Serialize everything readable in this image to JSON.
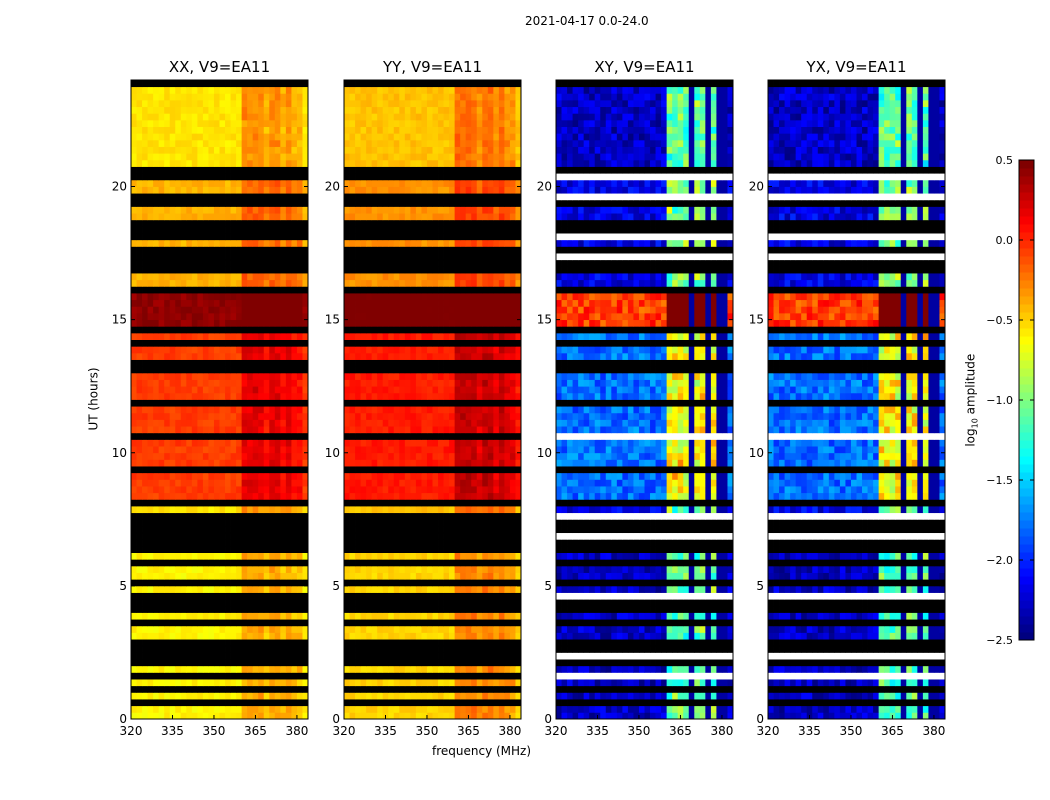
{
  "chart_data": {
    "type": "heatmap",
    "title": "2021-04-17 0.0-24.0",
    "xlabel": "frequency (MHz)",
    "ylabel": "UT (hours)",
    "xlim": [
      320,
      384
    ],
    "ylim": [
      0,
      24
    ],
    "xticks": [
      "320",
      "335",
      "350",
      "365",
      "380"
    ],
    "yticks": [
      "0",
      "5",
      "10",
      "15",
      "20"
    ],
    "panels": [
      {
        "title": "XX, V9=EA11",
        "kind": "parallel",
        "offset": 0.0
      },
      {
        "title": "YY, V9=EA11",
        "kind": "parallel",
        "offset": 0.1
      },
      {
        "title": "XY, V9=EA11",
        "kind": "cross",
        "offset": 0.0
      },
      {
        "title": "YX, V9=EA11",
        "kind": "cross",
        "offset": 0.0
      }
    ],
    "segments": [
      {
        "t0": 0,
        "t1": 2.7,
        "parallel": -0.6,
        "cross": -2.3
      },
      {
        "t0": 2.7,
        "t1": 7.0,
        "parallel": -0.6,
        "cross": -2.3
      },
      {
        "t0": 7.0,
        "t1": 8.0,
        "parallel": -0.55,
        "cross": -2.2
      },
      {
        "t0": 8.0,
        "t1": 14.5,
        "parallel": -0.05,
        "cross": -1.8
      },
      {
        "t0": 14.5,
        "t1": 16.0,
        "parallel": 0.45,
        "cross": -0.05
      },
      {
        "t0": 16.0,
        "t1": 20.4,
        "parallel": -0.4,
        "cross": -2.2
      },
      {
        "t0": 20.4,
        "t1": 24.0,
        "parallel": -0.55,
        "cross": -2.3
      }
    ],
    "rfi_band_mhz": [
      360,
      382
    ],
    "rfi_boost": {
      "parallel": 0.3,
      "cross": 1.4
    },
    "rfi_gaps_mhz": [
      369,
      375,
      380
    ],
    "flagged_hours": [
      0.5,
      1.0,
      1.6,
      2.0,
      2.3,
      2.6,
      2.7,
      3.6,
      4.1,
      4.3,
      4.6,
      5.0,
      5.8,
      6.3,
      6.6,
      6.8,
      7.1,
      7.2,
      7.6,
      8.0,
      9.3,
      10.4,
      10.5,
      11.7,
      12.9,
      13.2,
      14.1,
      14.6,
      16.1,
      16.7,
      17.1,
      17.2,
      17.6,
      18.0,
      18.3,
      18.6,
      19.2,
      19.6,
      20.2,
      20.5,
      23.7
    ],
    "colorbar": {
      "label_main": "log",
      "label_sub": "10",
      "label_rest": " amplitude",
      "range": [
        -2.5,
        0.5
      ],
      "ticks": [
        "0.5",
        "0.0",
        "−0.5",
        "−1.0",
        "−1.5",
        "−2.0",
        "−2.5"
      ],
      "colormap": "jet"
    }
  }
}
